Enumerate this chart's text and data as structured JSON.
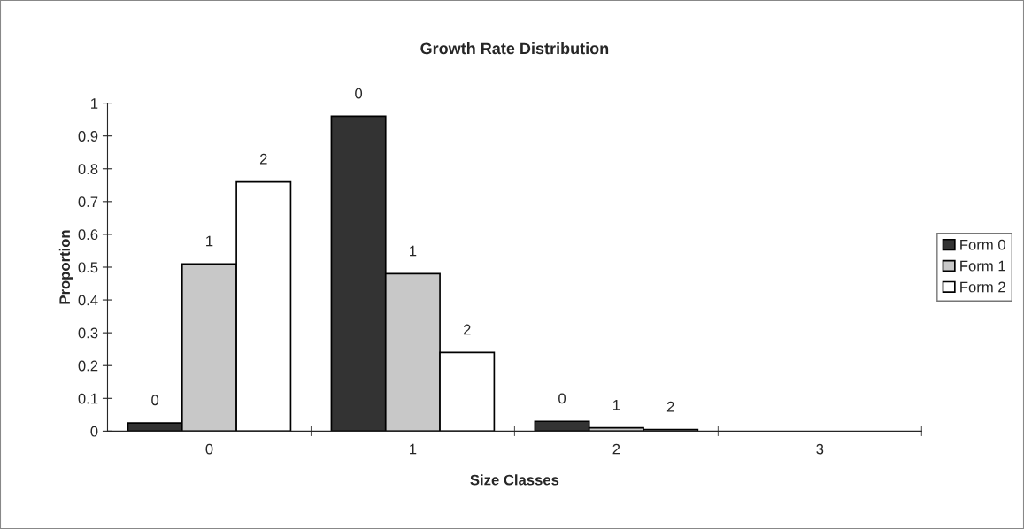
{
  "chart_data": {
    "type": "bar",
    "title": "Growth Rate Distribution",
    "xlabel": "Size Classes",
    "ylabel": "Proportion",
    "categories": [
      "0",
      "1",
      "2",
      "3"
    ],
    "series": [
      {
        "name": "Form 0",
        "color": "#333333",
        "values": [
          0.025,
          0.96,
          0.03,
          null
        ]
      },
      {
        "name": "Form 1",
        "color": "#c8c8c8",
        "values": [
          0.51,
          0.48,
          0.01,
          null
        ]
      },
      {
        "name": "Form 2",
        "color": "#ffffff",
        "values": [
          0.76,
          0.24,
          0.005,
          null
        ]
      }
    ],
    "annotations": [
      "0",
      "1",
      "2",
      "0",
      "1",
      "2",
      "0",
      "1",
      "2"
    ],
    "ylim": [
      0,
      1
    ],
    "yticks": [
      0,
      0.1,
      0.2,
      0.3,
      0.4,
      0.5,
      0.6,
      0.7,
      0.8,
      0.9,
      1
    ],
    "grid": false,
    "legend": "right"
  }
}
